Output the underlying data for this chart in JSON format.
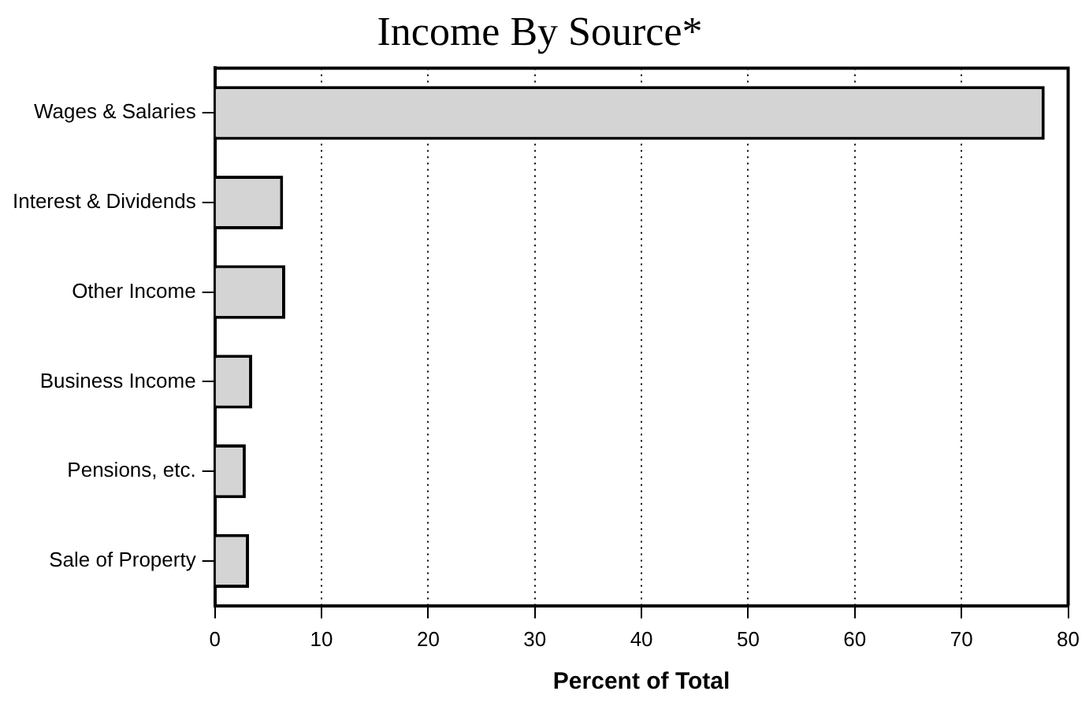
{
  "chart_data": {
    "type": "bar",
    "title": "Income By Source*",
    "xlabel": "Percent of Total",
    "orientation": "horizontal",
    "categories": [
      "Wages & Salaries",
      "Interest & Dividends",
      "Other Income",
      "Business Income",
      "Pensions, etc.",
      "Sale of Property"
    ],
    "values": [
      77.8,
      6.4,
      6.6,
      3.5,
      2.9,
      3.2
    ],
    "color": "#d4d4d4",
    "xlim": [
      0,
      80
    ],
    "xticks": [
      0,
      10,
      20,
      30,
      40,
      50,
      60,
      70,
      80
    ],
    "grid": "x",
    "line_style": "dotted"
  }
}
